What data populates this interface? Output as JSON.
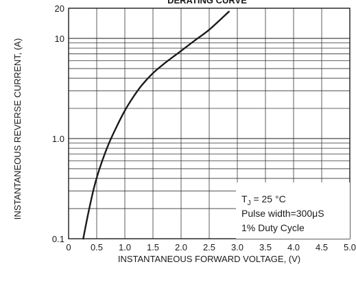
{
  "chart_data": {
    "type": "line",
    "title": "DERATING CURVE",
    "xlabel": "INSTANTANEOUS FORWARD VOLTAGE, (V)",
    "ylabel": "INSTANTANEOUS REVERSE CURRENT, (A)",
    "xlim": [
      0,
      5.0
    ],
    "ylim": [
      0.1,
      20
    ],
    "y_scale": "log",
    "x_ticks": [
      "0",
      "0.5",
      "1.0",
      "1.5",
      "2.0",
      "2.5",
      "3.0",
      "3.5",
      "4.0",
      "4.5",
      "5.0"
    ],
    "y_ticks": [
      "0.1",
      "1.0",
      "10",
      "20"
    ],
    "grid": true,
    "legend": "none",
    "series": [
      {
        "x": [
          0.26,
          0.35,
          0.45,
          0.55,
          0.7,
          0.85,
          1.0,
          1.15,
          1.3,
          1.5,
          1.7,
          2.0,
          2.25,
          2.5,
          2.85
        ],
        "y": [
          0.1,
          0.18,
          0.32,
          0.5,
          0.85,
          1.3,
          1.9,
          2.6,
          3.4,
          4.5,
          5.6,
          7.5,
          9.6,
          12.2,
          18.5
        ]
      }
    ],
    "annotation": {
      "line1_main": "T",
      "line1_sub": "J",
      "line1_rest": " = 25 °C",
      "line2": "Pulse width=300μS",
      "line3": "1% Duty Cycle"
    }
  },
  "colors": {
    "grid": "#333333",
    "curve": "#1a1a1a",
    "background": "#ffffff"
  }
}
